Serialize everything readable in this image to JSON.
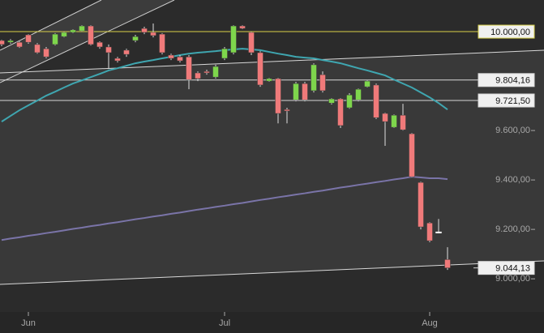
{
  "chart_data": {
    "type": "candlestick",
    "categories": [
      null,
      null,
      null,
      "Jun",
      null,
      null,
      null,
      null,
      null,
      null,
      null,
      null,
      null,
      null,
      null,
      null,
      null,
      null,
      null,
      null,
      null,
      null,
      null,
      null,
      null,
      "Jul",
      null,
      null,
      null,
      null,
      null,
      null,
      null,
      null,
      null,
      null,
      null,
      null,
      null,
      null,
      null,
      null,
      null,
      null,
      null,
      null,
      null,
      null,
      "Aug",
      null,
      null
    ],
    "open": [
      9964,
      9957,
      9957,
      9987,
      9948,
      9931,
      9948,
      9980,
      9997,
      10003,
      10023,
      9957,
      9938,
      9892,
      9925,
      9964,
      10013,
      9997,
      9990,
      9905,
      9898,
      9898,
      9833,
      9839,
      9816,
      9892,
      9915,
      10023,
      9997,
      9915,
      9800,
      9810,
      9685,
      9724,
      9790,
      9761,
      9826,
      9711,
      9728,
      9692,
      9724,
      9777,
      9784,
      9669,
      9613,
      9662,
      9587,
      9390,
      9226,
      9190,
      9078
    ],
    "high": [
      9967,
      9970,
      9961,
      9990,
      9954,
      9938,
      9994,
      10000,
      10010,
      10026,
      10026,
      9961,
      9948,
      9898,
      9931,
      9987,
      10020,
      10033,
      9994,
      9911,
      9905,
      9905,
      9839,
      9846,
      9866,
      9938,
      10026,
      10026,
      10000,
      9921,
      9813,
      9813,
      9692,
      9797,
      9797,
      9872,
      9839,
      9731,
      9731,
      9751,
      9770,
      9803,
      9790,
      9672,
      9665,
      9708,
      9590,
      9393,
      9229,
      9242,
      9128
    ],
    "low": [
      9941,
      9951,
      9934,
      9951,
      9911,
      9892,
      9944,
      9977,
      9994,
      10000,
      9944,
      9931,
      9849,
      9875,
      9898,
      9957,
      9990,
      9977,
      9908,
      9885,
      9875,
      9767,
      9800,
      9826,
      9810,
      9885,
      9908,
      10010,
      9905,
      9777,
      9797,
      9629,
      9629,
      9718,
      9718,
      9754,
      9754,
      9705,
      9610,
      9688,
      9718,
      9774,
      9646,
      9538,
      9610,
      9600,
      9410,
      9200,
      9148,
      9184,
      9036
    ],
    "close": [
      9948,
      9964,
      9938,
      9957,
      9915,
      9898,
      9990,
      9997,
      10007,
      10023,
      9948,
      9938,
      9915,
      9882,
      9908,
      9980,
      9997,
      9984,
      9915,
      9892,
      9882,
      9806,
      9810,
      9833,
      9859,
      9931,
      10023,
      10013,
      9915,
      9784,
      9810,
      9669,
      9679,
      9790,
      9724,
      9866,
      9761,
      9728,
      9620,
      9744,
      9767,
      9800,
      9652,
      9636,
      9662,
      9603,
      9413,
      9210,
      9154,
      9190,
      9044.13
    ],
    "up_color": "#7ed64c",
    "down_color": "#f07a7a",
    "flat_color": "#ffffff",
    "overlays": [
      {
        "color": "#3fa6b0",
        "values": [
          9636,
          9659,
          9682,
          9702,
          9721,
          9741,
          9757,
          9774,
          9790,
          9803,
          9816,
          9829,
          9843,
          9852,
          9862,
          9872,
          9879,
          9885,
          9892,
          9898,
          9905,
          9911,
          9915,
          9918,
          9921,
          9925,
          9928,
          9931,
          9928,
          9925,
          9918,
          9911,
          9905,
          9898,
          9895,
          9892,
          9885,
          9879,
          9872,
          9862,
          9852,
          9843,
          9833,
          9823,
          9806,
          9790,
          9774,
          9754,
          9734,
          9711,
          9685
        ]
      },
      {
        "color": "#7a74a8",
        "values": [
          9157,
          9163,
          9168,
          9174,
          9179,
          9185,
          9190,
          9196,
          9202,
          9207,
          9213,
          9218,
          9224,
          9229,
          9235,
          9241,
          9246,
          9252,
          9257,
          9263,
          9268,
          9274,
          9280,
          9285,
          9291,
          9296,
          9302,
          9307,
          9313,
          9319,
          9324,
          9330,
          9335,
          9341,
          9346,
          9352,
          9357,
          9363,
          9369,
          9374,
          9380,
          9385,
          9391,
          9396,
          9402,
          9407,
          9413,
          9410,
          9407,
          9407,
          9403
        ]
      }
    ],
    "levels": [
      {
        "value": 10000,
        "label": "10.000,00",
        "color": "#d8d04a"
      },
      {
        "value": 9804.16,
        "label": "9.804,16",
        "color": "#d8d8d8"
      },
      {
        "value": 9721.5,
        "label": "9.721,50",
        "color": "#d8d8d8"
      }
    ],
    "last_price": {
      "value": 9044.13,
      "label": "9.044,13"
    },
    "ylim": [
      8866,
      10128
    ],
    "yticks": [
      {
        "value": 9000,
        "label": "9.000,00"
      },
      {
        "value": 9200,
        "label": "9.200,00"
      },
      {
        "value": 9400,
        "label": "9.400,00"
      },
      {
        "value": 9600,
        "label": "9.600,00"
      }
    ]
  }
}
